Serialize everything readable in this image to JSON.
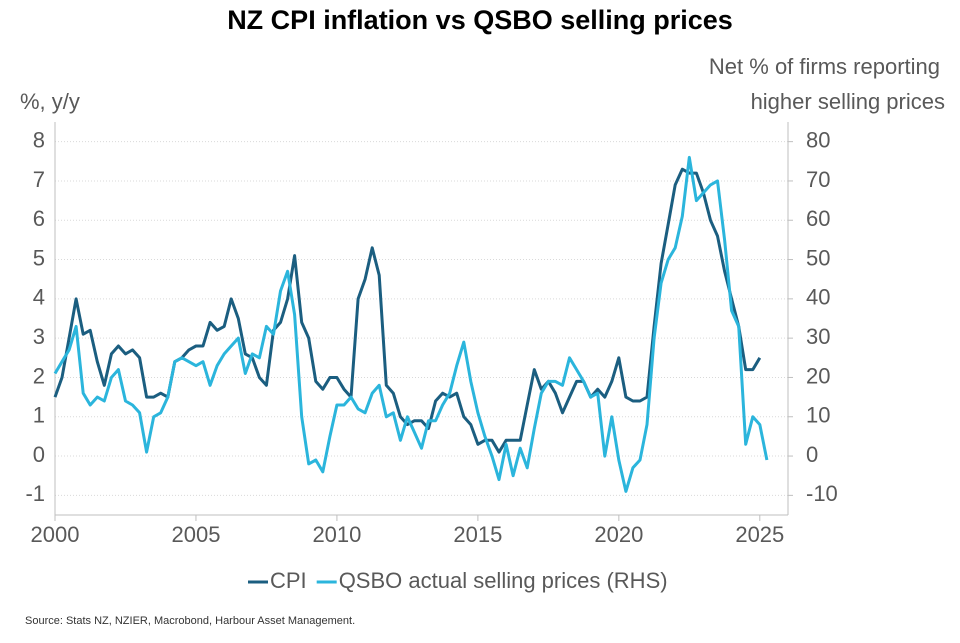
{
  "chart_data": {
    "type": "line",
    "title": "NZ CPI inflation vs QSBO selling prices",
    "ylabel": "%, y/y",
    "y2label": [
      "Net % of firms reporting",
      "higher selling prices"
    ],
    "source": "Source: Stats NZ, NZIER, Macrobond, Harbour Asset Management.",
    "x": [
      2000,
      2000.25,
      2000.5,
      2000.75,
      2001,
      2001.25,
      2001.5,
      2001.75,
      2002,
      2002.25,
      2002.5,
      2002.75,
      2003,
      2003.25,
      2003.5,
      2003.75,
      2004,
      2004.25,
      2004.5,
      2004.75,
      2005,
      2005.25,
      2005.5,
      2005.75,
      2006,
      2006.25,
      2006.5,
      2006.75,
      2007,
      2007.25,
      2007.5,
      2007.75,
      2008,
      2008.25,
      2008.5,
      2008.75,
      2009,
      2009.25,
      2009.5,
      2009.75,
      2010,
      2010.25,
      2010.5,
      2010.75,
      2011,
      2011.25,
      2011.5,
      2011.75,
      2012,
      2012.25,
      2012.5,
      2012.75,
      2013,
      2013.25,
      2013.5,
      2013.75,
      2014,
      2014.25,
      2014.5,
      2014.75,
      2015,
      2015.25,
      2015.5,
      2015.75,
      2016,
      2016.25,
      2016.5,
      2016.75,
      2017,
      2017.25,
      2017.5,
      2017.75,
      2018,
      2018.25,
      2018.5,
      2018.75,
      2019,
      2019.25,
      2019.5,
      2019.75,
      2020,
      2020.25,
      2020.5,
      2020.75,
      2021,
      2021.25,
      2021.5,
      2021.75,
      2022,
      2022.25,
      2022.5,
      2022.75,
      2023,
      2023.25,
      2023.5,
      2023.75,
      2024,
      2024.25,
      2024.5,
      2024.75,
      2025,
      2025.25
    ],
    "series": [
      {
        "name": "CPI",
        "color": "#1b5e80",
        "values": [
          1.5,
          2.0,
          3.0,
          4.0,
          3.1,
          3.2,
          2.4,
          1.8,
          2.6,
          2.8,
          2.6,
          2.7,
          2.5,
          1.5,
          1.5,
          1.6,
          1.5,
          2.4,
          2.5,
          2.7,
          2.8,
          2.8,
          3.4,
          3.2,
          3.3,
          4.0,
          3.5,
          2.6,
          2.5,
          2.0,
          1.8,
          3.2,
          3.4,
          4.0,
          5.1,
          3.4,
          3.0,
          1.9,
          1.7,
          2.0,
          2.0,
          1.7,
          1.5,
          4.0,
          4.5,
          5.3,
          4.6,
          1.8,
          1.6,
          1.0,
          0.8,
          0.9,
          0.9,
          0.7,
          1.4,
          1.6,
          1.5,
          1.6,
          1.0,
          0.8,
          0.3,
          0.4,
          0.4,
          0.1,
          0.4,
          0.4,
          0.4,
          1.3,
          2.2,
          1.7,
          1.9,
          1.6,
          1.1,
          1.5,
          1.9,
          1.9,
          1.5,
          1.7,
          1.5,
          1.9,
          2.5,
          1.5,
          1.4,
          1.4,
          1.5,
          3.3,
          4.9,
          5.9,
          6.9,
          7.3,
          7.2,
          7.2,
          6.7,
          6.0,
          5.6,
          4.7,
          4.0,
          3.3,
          2.2,
          2.2,
          2.5,
          null
        ]
      },
      {
        "name": "QSBO actual selling prices (RHS)",
        "color": "#2bb5dc",
        "axis": "y2",
        "values": [
          21,
          24,
          27,
          33,
          16,
          13,
          15,
          14,
          20,
          22,
          14,
          13,
          11,
          1,
          10,
          11,
          15,
          24,
          25,
          24,
          23,
          24,
          18,
          23,
          26,
          28,
          30,
          21,
          26,
          25,
          33,
          31,
          42,
          47,
          36,
          10,
          -2,
          -1,
          -4,
          5,
          13,
          13,
          15,
          12,
          11,
          16,
          18,
          10,
          11,
          4,
          10,
          6,
          2,
          9,
          9,
          13,
          16,
          23,
          29,
          19,
          11,
          5,
          0,
          -6,
          3,
          -5,
          2,
          -3,
          7,
          16,
          19,
          19,
          18,
          25,
          22,
          19,
          15,
          16,
          0,
          10,
          -1,
          -9,
          -3,
          -1,
          8,
          30,
          44,
          50,
          53,
          61,
          76,
          65,
          67,
          69,
          70,
          55,
          37,
          33,
          3,
          10,
          8,
          -1
        ]
      }
    ],
    "xlim": [
      2000,
      2026
    ],
    "xticks": [
      2000,
      2005,
      2010,
      2015,
      2020,
      2025
    ],
    "ylim": [
      -1.5,
      8.5
    ],
    "yticks": [
      -1,
      0,
      1,
      2,
      3,
      4,
      5,
      6,
      7,
      8
    ],
    "y2lim": [
      -15,
      85
    ],
    "y2ticks": [
      -10,
      0,
      10,
      20,
      30,
      40,
      50,
      60,
      70,
      80
    ],
    "grid": true,
    "legend": "bottom"
  }
}
